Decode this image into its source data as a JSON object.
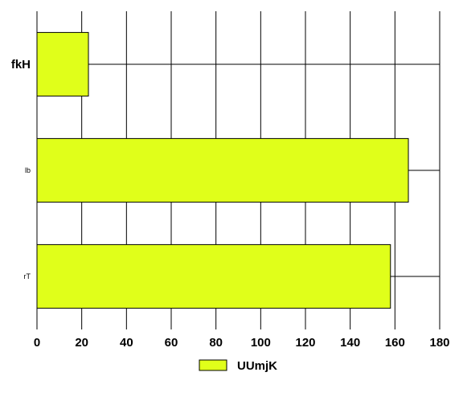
{
  "chart_data": {
    "type": "bar",
    "orientation": "horizontal",
    "categories": [
      "fkH",
      "lb",
      "rT"
    ],
    "series": [
      {
        "name": "UUmjK",
        "values": [
          23,
          166,
          158
        ]
      }
    ],
    "xlim": [
      0,
      180
    ],
    "xticks": [
      "0",
      "20",
      "40",
      "60",
      "80",
      "100",
      "120",
      "140",
      "160",
      "180"
    ],
    "grid": true,
    "legend_position": "bottom",
    "bar_color": "#e0ff1a"
  }
}
